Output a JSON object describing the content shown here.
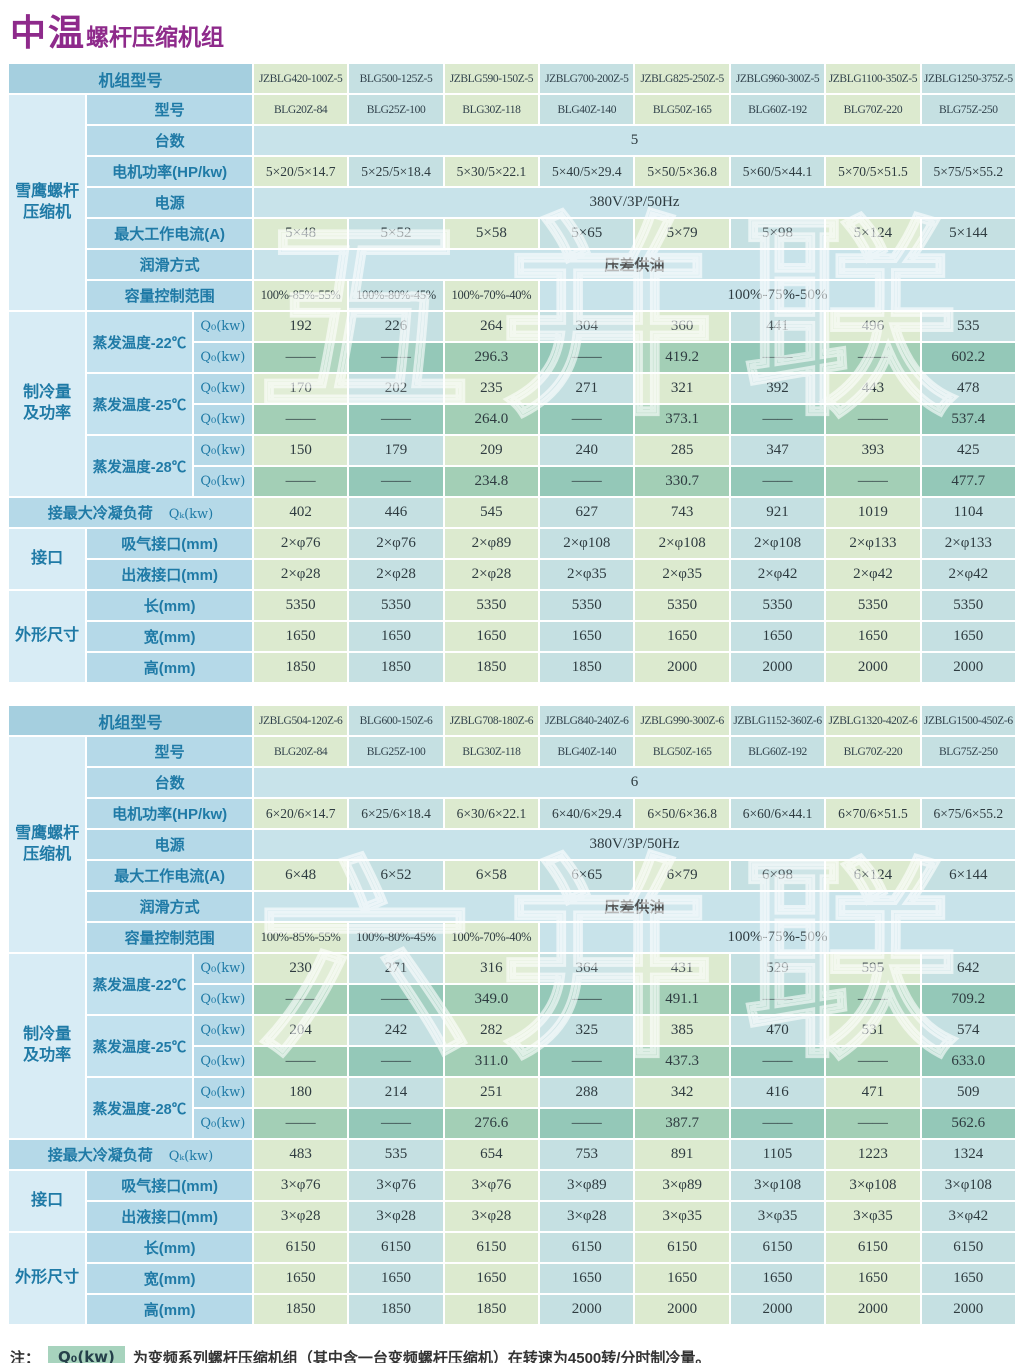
{
  "title": {
    "prefix": "中温",
    "suffix": "螺杆压缩机组"
  },
  "colors": {
    "title_purple": "#8e2a8b",
    "label_text": "#1f7aa6",
    "header_bg": "#a5cfdf",
    "group_bg": "#d8ecf5",
    "row_label_bg": "#b5d9e8",
    "col_green": "#dceacf",
    "col_blue": "#c5e0e2",
    "highlight_green": "#a3cfb6",
    "highlight_green_alt": "#94c8b8",
    "note_swatch": "#a7d3bd"
  },
  "labels": {
    "unit_model": "机组型号",
    "compressor_group": "雪鹰螺杆\n压缩机",
    "model": "型号",
    "qty": "台数",
    "motor_power": "电机功率(HP/kw)",
    "power_supply": "电源",
    "max_current": "最大工作电流(A)",
    "lubrication": "润滑方式",
    "capacity_range": "容量控制范围",
    "cooling_group": "制冷量\n及功率",
    "q0": "Q₀(kw)",
    "condensing": "接最大冷凝负荷",
    "qk": "Qₖ(kw)",
    "ports_group": "接口",
    "suction": "吸气接口(mm)",
    "liquid": "出液接口(mm)",
    "dims_group": "外形尺寸",
    "length": "长(mm)",
    "width": "宽(mm)",
    "height": "高(mm)"
  },
  "tables": [
    {
      "watermark": "五并联",
      "models": [
        "JZBLG420-100Z-5",
        "BLG500-125Z-5",
        "JZBLG590-150Z-5",
        "JZBLG700-200Z-5",
        "JZBLG825-250Z-5",
        "JZBLG960-300Z-5",
        "JZBLG1100-350Z-5",
        "JZBLG1250-375Z-5"
      ],
      "model_codes": [
        "BLG20Z-84",
        "BLG25Z-100",
        "BLG30Z-118",
        "BLG40Z-140",
        "BLG50Z-165",
        "BLG60Z-192",
        "BLG70Z-220",
        "BLG75Z-250"
      ],
      "qty": "5",
      "motor_power": [
        "5×20/5×14.7",
        "5×25/5×18.4",
        "5×30/5×22.1",
        "5×40/5×29.4",
        "5×50/5×36.8",
        "5×60/5×44.1",
        "5×70/5×51.5",
        "5×75/5×55.2"
      ],
      "power_supply": "380V/3P/50Hz",
      "max_current": [
        "5×48",
        "5×52",
        "5×58",
        "5×65",
        "5×79",
        "5×98",
        "5×124",
        "5×144"
      ],
      "lubrication": "压差供油",
      "capacity_range": [
        "100%-85%-55%",
        "100%-80%-45%",
        "100%-70%-40%"
      ],
      "capacity_range_rest": "100%-75%-50%",
      "temps": [
        {
          "label": "蒸发温度-22℃",
          "q": [
            "192",
            "226",
            "264",
            "304",
            "360",
            "441",
            "496",
            "535"
          ],
          "q_inv": [
            "——",
            "——",
            "296.3",
            "——",
            "419.2",
            "——",
            "——",
            "602.2"
          ]
        },
        {
          "label": "蒸发温度-25℃",
          "q": [
            "170",
            "202",
            "235",
            "271",
            "321",
            "392",
            "443",
            "478"
          ],
          "q_inv": [
            "——",
            "——",
            "264.0",
            "——",
            "373.1",
            "——",
            "——",
            "537.4"
          ]
        },
        {
          "label": "蒸发温度-28℃",
          "q": [
            "150",
            "179",
            "209",
            "240",
            "285",
            "347",
            "393",
            "425"
          ],
          "q_inv": [
            "——",
            "——",
            "234.8",
            "——",
            "330.7",
            "——",
            "——",
            "477.7"
          ]
        }
      ],
      "condensing": [
        "402",
        "446",
        "545",
        "627",
        "743",
        "921",
        "1019",
        "1104"
      ],
      "suction": [
        "2×φ76",
        "2×φ76",
        "2×φ89",
        "2×φ108",
        "2×φ108",
        "2×φ108",
        "2×φ133",
        "2×φ133"
      ],
      "liquid": [
        "2×φ28",
        "2×φ28",
        "2×φ28",
        "2×φ35",
        "2×φ35",
        "2×φ42",
        "2×φ42",
        "2×φ42"
      ],
      "length": [
        "5350",
        "5350",
        "5350",
        "5350",
        "5350",
        "5350",
        "5350",
        "5350"
      ],
      "width": [
        "1650",
        "1650",
        "1650",
        "1650",
        "1650",
        "1650",
        "1650",
        "1650"
      ],
      "height": [
        "1850",
        "1850",
        "1850",
        "1850",
        "2000",
        "2000",
        "2000",
        "2000"
      ]
    },
    {
      "watermark": "六并联",
      "models": [
        "JZBLG504-120Z-6",
        "BLG600-150Z-6",
        "JZBLG708-180Z-6",
        "JZBLG840-240Z-6",
        "JZBLG990-300Z-6",
        "JZBLG1152-360Z-6",
        "JZBLG1320-420Z-6",
        "JZBLG1500-450Z-6"
      ],
      "model_codes": [
        "BLG20Z-84",
        "BLG25Z-100",
        "BLG30Z-118",
        "BLG40Z-140",
        "BLG50Z-165",
        "BLG60Z-192",
        "BLG70Z-220",
        "BLG75Z-250"
      ],
      "qty": "6",
      "motor_power": [
        "6×20/6×14.7",
        "6×25/6×18.4",
        "6×30/6×22.1",
        "6×40/6×29.4",
        "6×50/6×36.8",
        "6×60/6×44.1",
        "6×70/6×51.5",
        "6×75/6×55.2"
      ],
      "power_supply": "380V/3P/50Hz",
      "max_current": [
        "6×48",
        "6×52",
        "6×58",
        "6×65",
        "6×79",
        "6×98",
        "6×124",
        "6×144"
      ],
      "lubrication": "压差供油",
      "capacity_range": [
        "100%-85%-55%",
        "100%-80%-45%",
        "100%-70%-40%"
      ],
      "capacity_range_rest": "100%-75%-50%",
      "temps": [
        {
          "label": "蒸发温度-22℃",
          "q": [
            "230",
            "271",
            "316",
            "364",
            "431",
            "529",
            "595",
            "642"
          ],
          "q_inv": [
            "——",
            "——",
            "349.0",
            "——",
            "491.1",
            "——",
            "——",
            "709.2"
          ]
        },
        {
          "label": "蒸发温度-25℃",
          "q": [
            "204",
            "242",
            "282",
            "325",
            "385",
            "470",
            "531",
            "574"
          ],
          "q_inv": [
            "——",
            "——",
            "311.0",
            "——",
            "437.3",
            "——",
            "——",
            "633.0"
          ]
        },
        {
          "label": "蒸发温度-28℃",
          "q": [
            "180",
            "214",
            "251",
            "288",
            "342",
            "416",
            "471",
            "509"
          ],
          "q_inv": [
            "——",
            "——",
            "276.6",
            "——",
            "387.7",
            "——",
            "——",
            "562.6"
          ]
        }
      ],
      "condensing": [
        "483",
        "535",
        "654",
        "753",
        "891",
        "1105",
        "1223",
        "1324"
      ],
      "suction": [
        "3×φ76",
        "3×φ76",
        "3×φ76",
        "3×φ89",
        "3×φ89",
        "3×φ108",
        "3×φ108",
        "3×φ108"
      ],
      "liquid": [
        "3×φ28",
        "3×φ28",
        "3×φ28",
        "3×φ28",
        "3×φ35",
        "3×φ35",
        "3×φ35",
        "3×φ42"
      ],
      "length": [
        "6150",
        "6150",
        "6150",
        "6150",
        "6150",
        "6150",
        "6150",
        "6150"
      ],
      "width": [
        "1650",
        "1650",
        "1650",
        "1650",
        "1650",
        "1650",
        "1650",
        "1650"
      ],
      "height": [
        "1850",
        "1850",
        "1850",
        "2000",
        "2000",
        "2000",
        "2000",
        "2000"
      ]
    }
  ],
  "note": {
    "prefix": "注：",
    "q_label": "Q₀(kw)",
    "text": "为变频系列螺杆压缩机组（其中含一台变频螺杆压缩机）在转速为4500转/分时制冷量。"
  }
}
